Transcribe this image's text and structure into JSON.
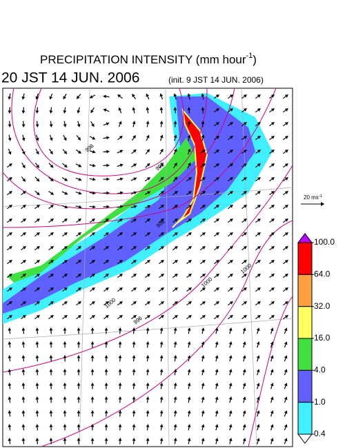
{
  "header": {
    "title_main": "PRECIPITATION INTENSITY (mm hour",
    "title_sup": "-1",
    "title_end": ")",
    "valid_time": "20 JST 14 JUN. 2006",
    "init_time": "(init. 9 JST 14 JUN. 2006)"
  },
  "vector_key": {
    "label": "20 ms",
    "sup": "-1"
  },
  "colorbar": {
    "levels": [
      {
        "value": 100,
        "label": "100.0"
      },
      {
        "value": 64,
        "label": "64.0"
      },
      {
        "value": 32,
        "label": "32.0"
      },
      {
        "value": 16,
        "label": "16.0"
      },
      {
        "value": 4,
        "label": "4.0"
      },
      {
        "value": 1,
        "label": "1.0"
      },
      {
        "value": 0.4,
        "label": "0.4"
      }
    ],
    "colors": [
      "#c000ff",
      "#ff0000",
      "#ffa040",
      "#ffff60",
      "#40e040",
      "#6060ff",
      "#40f0ff",
      "#ffffff"
    ]
  },
  "isobar_labels": [
    "996",
    "992",
    "996",
    "1000",
    "1000",
    "996",
    "1000"
  ]
}
